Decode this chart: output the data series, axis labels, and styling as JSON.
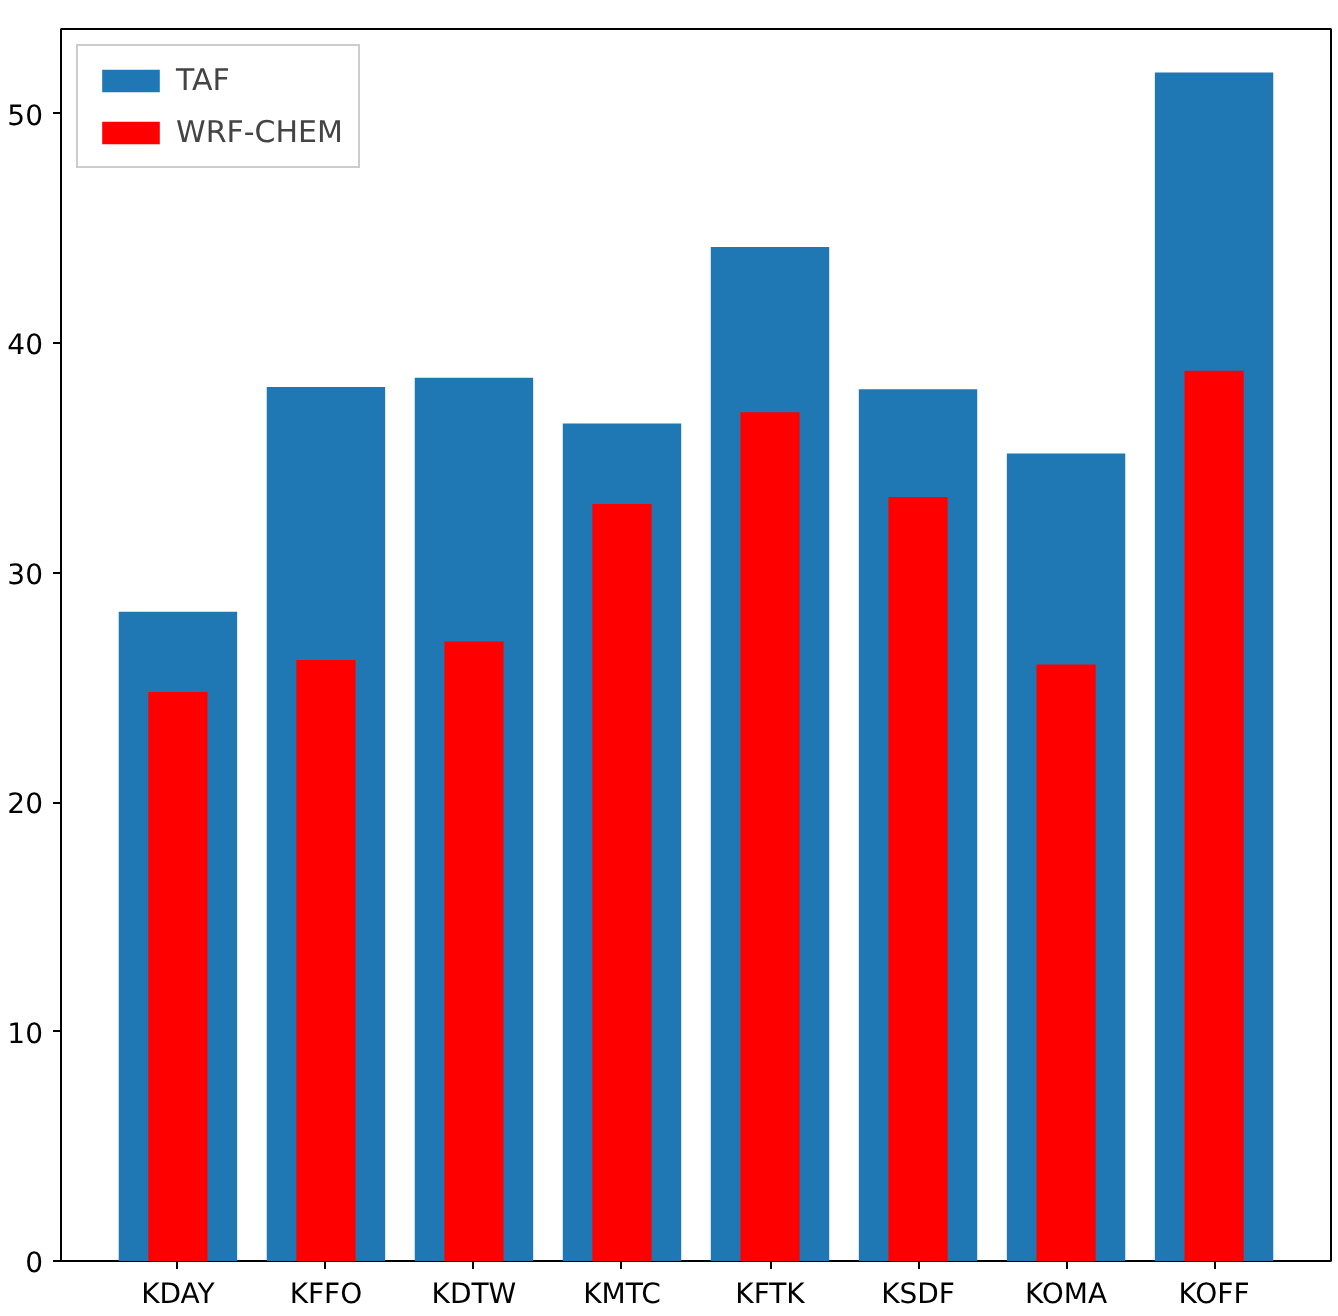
{
  "chart_data": {
    "type": "bar",
    "categories": [
      "KDAY",
      "KFFO",
      "KDTW",
      "KMTC",
      "KFTK",
      "KSDF",
      "KOMA",
      "KOFF"
    ],
    "series": [
      {
        "name": "TAF",
        "color": "#1f77b4",
        "values": [
          28.3,
          38.1,
          38.5,
          36.5,
          44.2,
          38.0,
          35.2,
          51.8
        ]
      },
      {
        "name": "WRF-CHEM",
        "color": "#ff0000",
        "values": [
          24.8,
          26.2,
          27.0,
          33.0,
          37.0,
          33.3,
          26.0,
          38.8
        ]
      }
    ],
    "ylim": [
      0,
      53.7
    ],
    "yticks": [
      0,
      10,
      20,
      30,
      40,
      50
    ],
    "grid": false,
    "legend": "top left"
  }
}
